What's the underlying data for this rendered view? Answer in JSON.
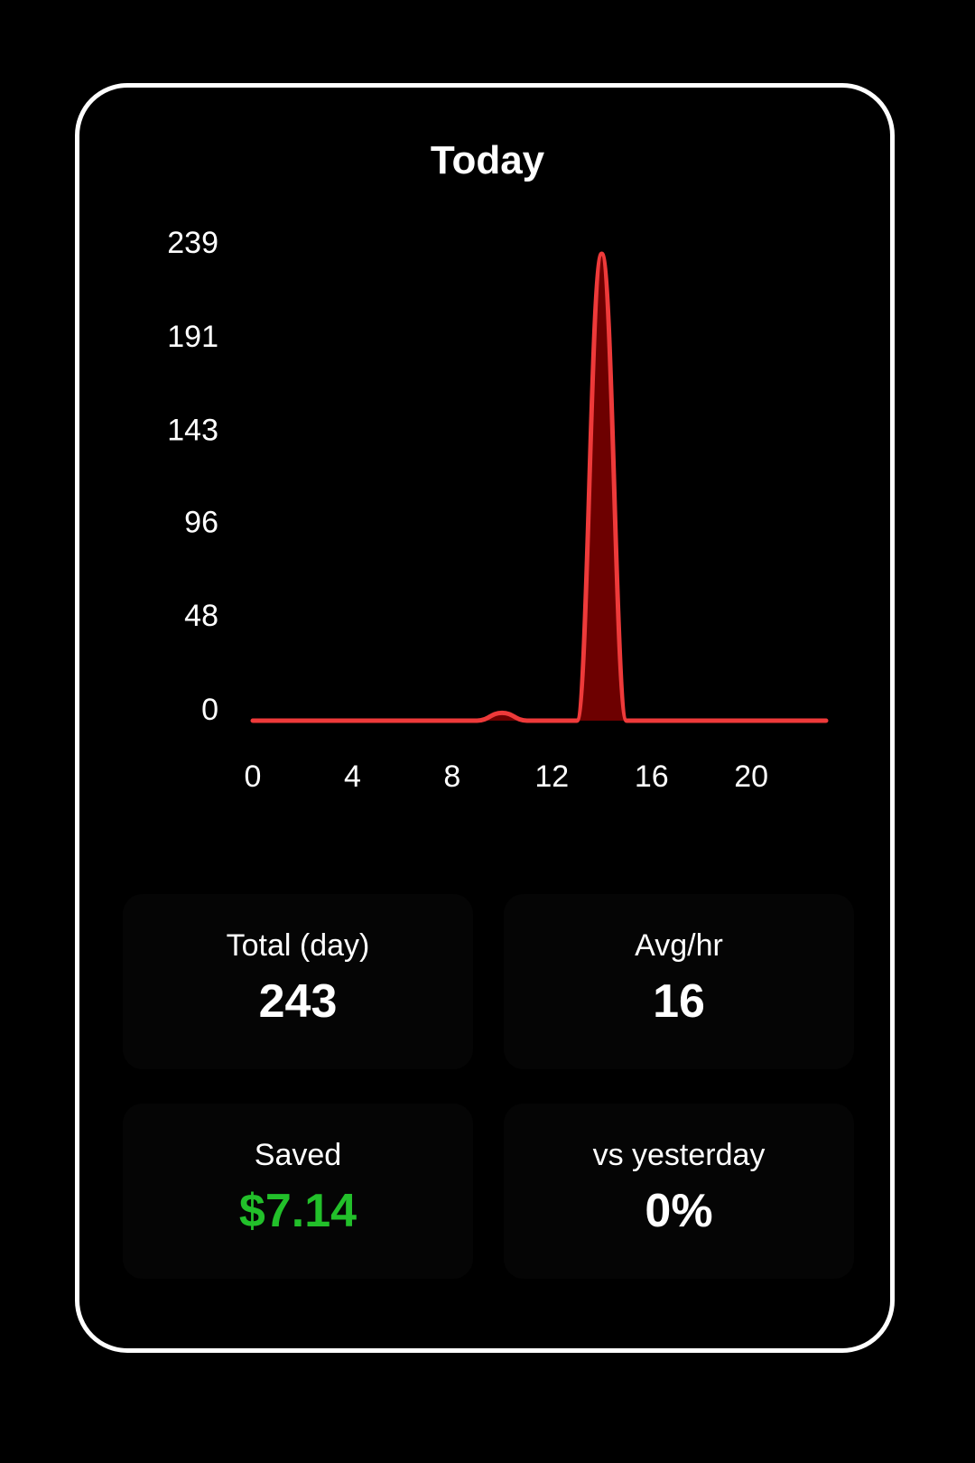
{
  "card": {
    "title": "Today"
  },
  "colors": {
    "line": "#ee3a3a",
    "fill": "#6d0000",
    "saved_value": "#22c02a",
    "background": "#000000"
  },
  "chart_data": {
    "type": "area",
    "title": "Today",
    "xlabel": "",
    "ylabel": "",
    "x_ticks": [
      0,
      4,
      8,
      12,
      16,
      20
    ],
    "y_ticks": [
      0,
      48,
      96,
      143,
      191,
      239
    ],
    "xlim": [
      0,
      23
    ],
    "ylim": [
      0,
      239
    ],
    "grid": false,
    "x": [
      0,
      1,
      2,
      3,
      4,
      5,
      6,
      7,
      8,
      9,
      10,
      11,
      12,
      13,
      14,
      15,
      16,
      17,
      18,
      19,
      20,
      21,
      22,
      23
    ],
    "series": [
      {
        "values": [
          0,
          0,
          0,
          0,
          0,
          0,
          0,
          0,
          0,
          0,
          4,
          0,
          0,
          0,
          239,
          0,
          0,
          0,
          0,
          0,
          0,
          0,
          0,
          0
        ]
      }
    ]
  },
  "stats": [
    {
      "label": "Total (day)",
      "value": "243"
    },
    {
      "label": "Avg/hr",
      "value": "16"
    },
    {
      "label": "Saved",
      "value": "$7.14"
    },
    {
      "label": "vs yesterday",
      "value": "0%"
    }
  ]
}
